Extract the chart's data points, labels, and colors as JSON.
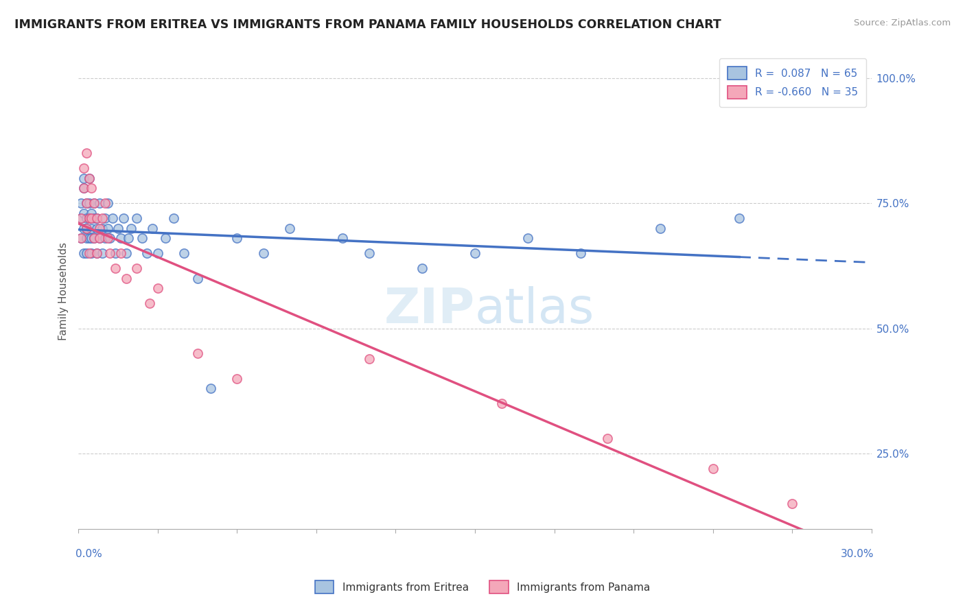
{
  "title": "IMMIGRANTS FROM ERITREA VS IMMIGRANTS FROM PANAMA FAMILY HOUSEHOLDS CORRELATION CHART",
  "source": "Source: ZipAtlas.com",
  "ylabel": "Family Households",
  "y_tick_labels": [
    "100.0%",
    "75.0%",
    "50.0%",
    "25.0%"
  ],
  "y_tick_values": [
    1.0,
    0.75,
    0.5,
    0.25
  ],
  "x_min": 0.0,
  "x_max": 0.3,
  "y_min": 0.1,
  "y_max": 1.05,
  "eritrea_R": 0.087,
  "eritrea_N": 65,
  "panama_R": -0.66,
  "panama_N": 35,
  "eritrea_color": "#a8c4e0",
  "panama_color": "#f4a7b9",
  "eritrea_line_color": "#4472C4",
  "panama_line_color": "#E05080",
  "legend_label_eritrea": "Immigrants from Eritrea",
  "legend_label_panama": "Immigrants from Panama",
  "eritrea_x": [
    0.001,
    0.001,
    0.001,
    0.002,
    0.002,
    0.002,
    0.002,
    0.002,
    0.003,
    0.003,
    0.003,
    0.003,
    0.003,
    0.004,
    0.004,
    0.004,
    0.004,
    0.005,
    0.005,
    0.005,
    0.005,
    0.006,
    0.006,
    0.006,
    0.007,
    0.007,
    0.007,
    0.008,
    0.008,
    0.009,
    0.009,
    0.01,
    0.01,
    0.011,
    0.011,
    0.012,
    0.013,
    0.014,
    0.015,
    0.016,
    0.017,
    0.018,
    0.019,
    0.02,
    0.022,
    0.024,
    0.026,
    0.028,
    0.03,
    0.033,
    0.036,
    0.04,
    0.045,
    0.05,
    0.06,
    0.07,
    0.08,
    0.1,
    0.11,
    0.13,
    0.15,
    0.17,
    0.19,
    0.22,
    0.25
  ],
  "eritrea_y": [
    0.68,
    0.72,
    0.75,
    0.7,
    0.73,
    0.65,
    0.78,
    0.8,
    0.68,
    0.72,
    0.75,
    0.65,
    0.7,
    0.72,
    0.68,
    0.75,
    0.8,
    0.7,
    0.73,
    0.65,
    0.68,
    0.72,
    0.75,
    0.68,
    0.7,
    0.65,
    0.72,
    0.68,
    0.75,
    0.7,
    0.65,
    0.72,
    0.68,
    0.7,
    0.75,
    0.68,
    0.72,
    0.65,
    0.7,
    0.68,
    0.72,
    0.65,
    0.68,
    0.7,
    0.72,
    0.68,
    0.65,
    0.7,
    0.65,
    0.68,
    0.72,
    0.65,
    0.6,
    0.38,
    0.68,
    0.65,
    0.7,
    0.68,
    0.65,
    0.62,
    0.65,
    0.68,
    0.65,
    0.7,
    0.72
  ],
  "panama_x": [
    0.001,
    0.001,
    0.002,
    0.002,
    0.003,
    0.003,
    0.003,
    0.004,
    0.004,
    0.004,
    0.005,
    0.005,
    0.006,
    0.006,
    0.007,
    0.007,
    0.008,
    0.008,
    0.009,
    0.01,
    0.011,
    0.012,
    0.014,
    0.016,
    0.018,
    0.022,
    0.027,
    0.03,
    0.045,
    0.06,
    0.11,
    0.16,
    0.2,
    0.24,
    0.27
  ],
  "panama_y": [
    0.72,
    0.68,
    0.78,
    0.82,
    0.75,
    0.7,
    0.85,
    0.8,
    0.72,
    0.65,
    0.78,
    0.72,
    0.68,
    0.75,
    0.65,
    0.72,
    0.7,
    0.68,
    0.72,
    0.75,
    0.68,
    0.65,
    0.62,
    0.65,
    0.6,
    0.62,
    0.55,
    0.58,
    0.45,
    0.4,
    0.44,
    0.35,
    0.28,
    0.22,
    0.15
  ]
}
